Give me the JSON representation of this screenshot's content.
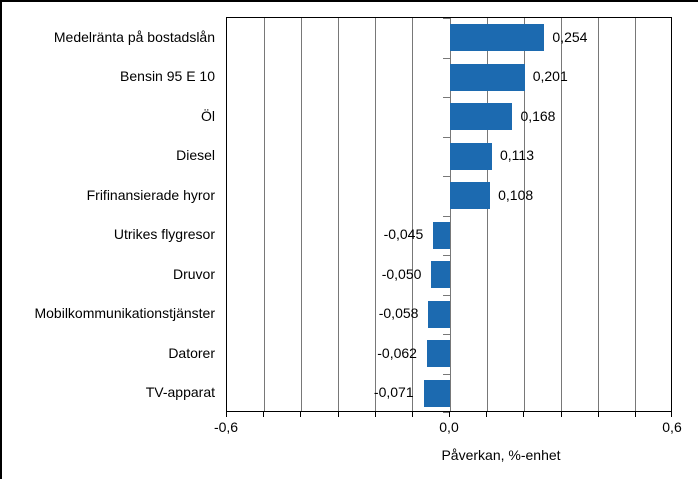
{
  "chart_data": {
    "type": "bar",
    "orientation": "horizontal",
    "title": "",
    "xlabel": "Påverkan, %-enhet",
    "ylabel": "",
    "categories": [
      "Medelränta på bostadslån",
      "Bensin 95 E 10",
      "Öl",
      "Diesel",
      "Frifinansierade hyror",
      "Utrikes flygresor",
      "Druvor",
      "Mobilkommunikationstjänster",
      "Datorer",
      "TV-apparat"
    ],
    "values": [
      0.254,
      0.201,
      0.168,
      0.113,
      0.108,
      -0.045,
      -0.05,
      -0.058,
      -0.062,
      -0.071
    ],
    "value_labels": [
      "0,254",
      "0,201",
      "0,168",
      "0,113",
      "0,108",
      "-0,045",
      "-0,050",
      "-0,058",
      "-0,062",
      "-0,071"
    ],
    "xlim": [
      -0.6,
      0.6
    ],
    "grid": true,
    "gridline_step": 0.1,
    "x_ticks": [
      {
        "value": -0.6,
        "label": "-0,6"
      },
      {
        "value": 0.0,
        "label": "0,0"
      },
      {
        "value": 0.6,
        "label": "0,6"
      }
    ],
    "legend": false,
    "decimal_separator": ",",
    "colors": {
      "bar": "#1c6ab0",
      "grid": "#787878",
      "axis": "#000000",
      "background": "#ffffff"
    }
  }
}
